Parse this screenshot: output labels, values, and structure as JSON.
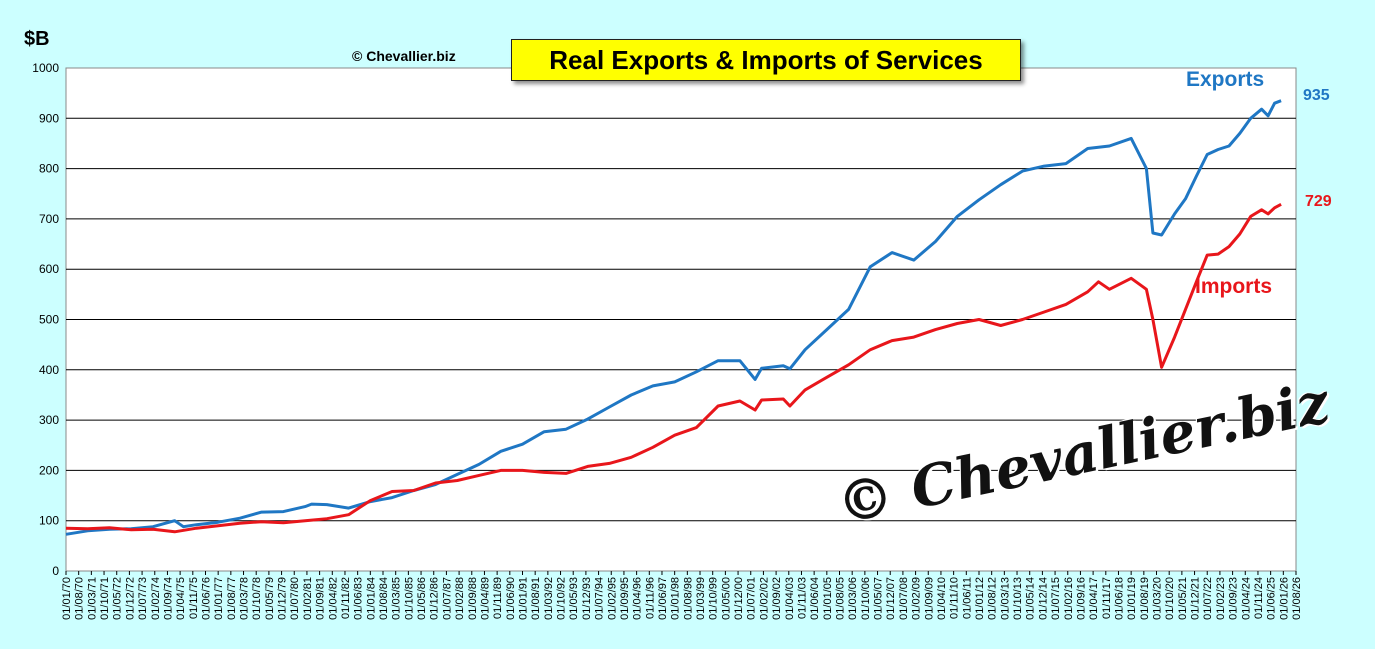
{
  "chart_data": {
    "type": "line",
    "title": "Real Exports & Imports of Services",
    "ylabel": "$B",
    "ylim": [
      0,
      1000
    ],
    "ytick_step": 100,
    "grid": true,
    "copyright": "© Chevallier.biz",
    "watermark": "© Chevallier.biz",
    "end_labels": {
      "exports": "935",
      "imports": "729"
    },
    "x_tick_labels": [
      "01/01/70",
      "01/08/70",
      "01/03/71",
      "01/10/71",
      "01/05/72",
      "01/12/72",
      "01/07/73",
      "01/02/74",
      "01/09/74",
      "01/04/75",
      "01/11/75",
      "01/06/76",
      "01/01/77",
      "01/08/77",
      "01/03/78",
      "01/10/78",
      "01/05/79",
      "01/12/79",
      "01/07/80",
      "01/02/81",
      "01/09/81",
      "01/04/82",
      "01/11/82",
      "01/06/83",
      "01/01/84",
      "01/08/84",
      "01/03/85",
      "01/10/85",
      "01/05/86",
      "01/12/86",
      "01/07/87",
      "01/02/88",
      "01/09/88",
      "01/04/89",
      "01/11/89",
      "01/06/90",
      "01/01/91",
      "01/08/91",
      "01/03/92",
      "01/10/92",
      "01/05/93",
      "01/12/93",
      "01/07/94",
      "01/02/95",
      "01/09/95",
      "01/04/96",
      "01/11/96",
      "01/06/97",
      "01/01/98",
      "01/08/98",
      "01/03/99",
      "01/10/99",
      "01/05/00",
      "01/12/00",
      "01/07/01",
      "01/02/02",
      "01/09/02",
      "01/04/03",
      "01/11/03",
      "01/06/04",
      "01/01/05",
      "01/08/05",
      "01/03/06",
      "01/10/06",
      "01/05/07",
      "01/12/07",
      "01/07/08",
      "01/02/09",
      "01/09/09",
      "01/04/10",
      "01/11/10",
      "01/06/11",
      "01/01/12",
      "01/08/12",
      "01/03/13",
      "01/10/13",
      "01/05/14",
      "01/12/14",
      "01/07/15",
      "01/02/16",
      "01/09/16",
      "01/04/17",
      "01/11/17",
      "01/06/18",
      "01/01/19",
      "01/08/19",
      "01/03/20",
      "01/10/20",
      "01/05/21",
      "01/12/21",
      "01/07/22",
      "01/02/23",
      "01/09/23",
      "01/04/24",
      "01/11/24",
      "01/06/25",
      "01/01/26",
      "01/08/26"
    ],
    "series": [
      {
        "name": "Exports",
        "color": "#1f77c4",
        "points": [
          [
            1970.0,
            73
          ],
          [
            1971.0,
            80
          ],
          [
            1972.0,
            83
          ],
          [
            1973.0,
            84
          ],
          [
            1974.0,
            88
          ],
          [
            1975.0,
            100
          ],
          [
            1975.4,
            88
          ],
          [
            1976.0,
            92
          ],
          [
            1977.0,
            97
          ],
          [
            1978.0,
            105
          ],
          [
            1979.0,
            117
          ],
          [
            1980.0,
            118
          ],
          [
            1981.0,
            128
          ],
          [
            1981.3,
            133
          ],
          [
            1982.0,
            132
          ],
          [
            1983.0,
            125
          ],
          [
            1984.0,
            138
          ],
          [
            1985.0,
            146
          ],
          [
            1986.0,
            160
          ],
          [
            1987.0,
            172
          ],
          [
            1988.0,
            192
          ],
          [
            1989.0,
            212
          ],
          [
            1990.0,
            238
          ],
          [
            1991.0,
            252
          ],
          [
            1992.0,
            277
          ],
          [
            1993.0,
            282
          ],
          [
            1994.0,
            302
          ],
          [
            1995.0,
            326
          ],
          [
            1996.0,
            350
          ],
          [
            1997.0,
            368
          ],
          [
            1998.0,
            376
          ],
          [
            1999.0,
            396
          ],
          [
            2000.0,
            418
          ],
          [
            2001.0,
            418
          ],
          [
            2001.7,
            381
          ],
          [
            2002.0,
            403
          ],
          [
            2003.0,
            408
          ],
          [
            2003.3,
            402
          ],
          [
            2004.0,
            440
          ],
          [
            2005.0,
            480
          ],
          [
            2006.0,
            520
          ],
          [
            2007.0,
            605
          ],
          [
            2008.0,
            633
          ],
          [
            2009.0,
            618
          ],
          [
            2010.0,
            655
          ],
          [
            2011.0,
            705
          ],
          [
            2012.0,
            738
          ],
          [
            2013.0,
            768
          ],
          [
            2014.0,
            795
          ],
          [
            2015.0,
            805
          ],
          [
            2016.0,
            810
          ],
          [
            2017.0,
            840
          ],
          [
            2018.0,
            845
          ],
          [
            2019.0,
            860
          ],
          [
            2019.7,
            800
          ],
          [
            2020.0,
            672
          ],
          [
            2020.4,
            668
          ],
          [
            2021.0,
            710
          ],
          [
            2021.5,
            740
          ],
          [
            2022.0,
            785
          ],
          [
            2022.5,
            828
          ],
          [
            2023.0,
            838
          ],
          [
            2023.5,
            845
          ],
          [
            2024.0,
            870
          ],
          [
            2024.5,
            900
          ],
          [
            2025.0,
            918
          ],
          [
            2025.3,
            905
          ],
          [
            2025.6,
            930
          ],
          [
            2025.9,
            935
          ]
        ]
      },
      {
        "name": "Imports",
        "color": "#e8161b",
        "points": [
          [
            1970.0,
            85
          ],
          [
            1971.0,
            84
          ],
          [
            1972.0,
            86
          ],
          [
            1973.0,
            82
          ],
          [
            1974.0,
            83
          ],
          [
            1975.0,
            78
          ],
          [
            1976.0,
            85
          ],
          [
            1977.0,
            90
          ],
          [
            1978.0,
            95
          ],
          [
            1979.0,
            98
          ],
          [
            1980.0,
            96
          ],
          [
            1981.0,
            100
          ],
          [
            1982.0,
            104
          ],
          [
            1983.0,
            112
          ],
          [
            1984.0,
            140
          ],
          [
            1985.0,
            158
          ],
          [
            1986.0,
            160
          ],
          [
            1987.0,
            175
          ],
          [
            1988.0,
            180
          ],
          [
            1989.0,
            190
          ],
          [
            1990.0,
            200
          ],
          [
            1991.0,
            200
          ],
          [
            1992.0,
            196
          ],
          [
            1993.0,
            194
          ],
          [
            1994.0,
            208
          ],
          [
            1995.0,
            214
          ],
          [
            1996.0,
            226
          ],
          [
            1997.0,
            246
          ],
          [
            1998.0,
            270
          ],
          [
            1999.0,
            285
          ],
          [
            2000.0,
            328
          ],
          [
            2001.0,
            338
          ],
          [
            2001.7,
            320
          ],
          [
            2002.0,
            340
          ],
          [
            2003.0,
            342
          ],
          [
            2003.3,
            328
          ],
          [
            2004.0,
            360
          ],
          [
            2005.0,
            385
          ],
          [
            2006.0,
            410
          ],
          [
            2007.0,
            440
          ],
          [
            2008.0,
            458
          ],
          [
            2009.0,
            465
          ],
          [
            2010.0,
            480
          ],
          [
            2011.0,
            492
          ],
          [
            2012.0,
            500
          ],
          [
            2013.0,
            488
          ],
          [
            2014.0,
            500
          ],
          [
            2015.0,
            515
          ],
          [
            2016.0,
            530
          ],
          [
            2017.0,
            555
          ],
          [
            2017.5,
            575
          ],
          [
            2018.0,
            560
          ],
          [
            2019.0,
            582
          ],
          [
            2019.7,
            560
          ],
          [
            2020.0,
            500
          ],
          [
            2020.4,
            405
          ],
          [
            2021.0,
            465
          ],
          [
            2021.5,
            520
          ],
          [
            2022.0,
            575
          ],
          [
            2022.5,
            628
          ],
          [
            2023.0,
            630
          ],
          [
            2023.5,
            645
          ],
          [
            2024.0,
            670
          ],
          [
            2024.5,
            705
          ],
          [
            2025.0,
            718
          ],
          [
            2025.3,
            710
          ],
          [
            2025.6,
            722
          ],
          [
            2025.9,
            729
          ]
        ]
      }
    ]
  }
}
